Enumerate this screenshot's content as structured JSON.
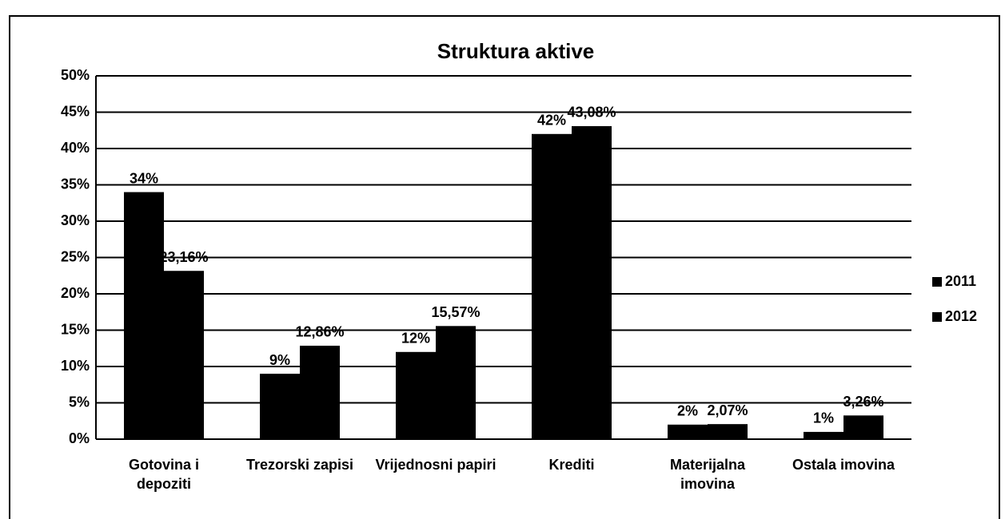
{
  "chart_data": {
    "type": "bar",
    "title": "Struktura aktive",
    "categories": [
      "Gotovina i depoziti",
      "Trezorski zapisi",
      "Vrijednosni papiri",
      "Krediti",
      "Materijalna imovina",
      "Ostala imovina"
    ],
    "series": [
      {
        "name": "2011",
        "color": "#000000",
        "values": [
          34,
          9,
          12,
          42,
          2,
          1
        ],
        "value_labels": [
          "34%",
          "9%",
          "12%",
          "42%",
          "2%",
          "1%"
        ]
      },
      {
        "name": "2012",
        "color": "#000000",
        "values": [
          23.16,
          12.86,
          15.57,
          43.08,
          2.07,
          3.26
        ],
        "value_labels": [
          "23,16%",
          "12,86%",
          "15,57%",
          "43,08%",
          "2,07%",
          "3,26%"
        ]
      }
    ],
    "ylim": [
      0,
      50
    ],
    "yticks": [
      {
        "value": 0,
        "label": "0%"
      },
      {
        "value": 5,
        "label": "5%"
      },
      {
        "value": 10,
        "label": "10%"
      },
      {
        "value": 15,
        "label": "15%"
      },
      {
        "value": 20,
        "label": "20%"
      },
      {
        "value": 25,
        "label": "25%"
      },
      {
        "value": 30,
        "label": "30%"
      },
      {
        "value": 35,
        "label": "35%"
      },
      {
        "value": 40,
        "label": "40%"
      },
      {
        "value": 45,
        "label": "45%"
      },
      {
        "value": 50,
        "label": "50%"
      }
    ],
    "grid": true,
    "legend": "right"
  }
}
